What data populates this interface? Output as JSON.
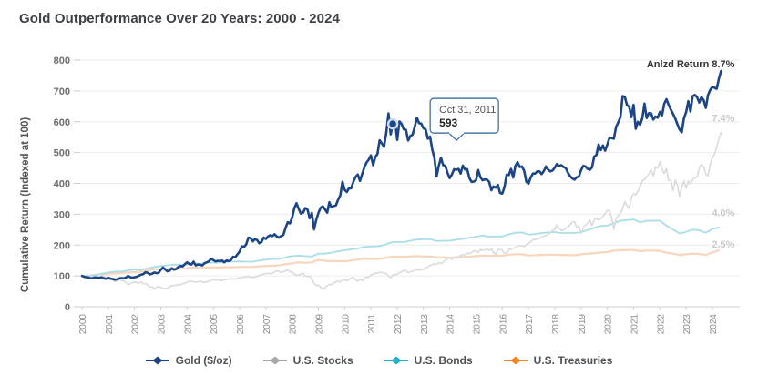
{
  "title": "Gold Outperformance Over 20 Years: 2000 - 2024",
  "chart_data": {
    "type": "line",
    "title": "Gold Outperformance Over 20 Years: 2000 - 2024",
    "xlabel": "",
    "ylabel": "Cumulative Return (Indexed at 100)",
    "ylim": [
      0,
      800
    ],
    "yticks": [
      0,
      100,
      200,
      300,
      400,
      500,
      600,
      700,
      800
    ],
    "xticks": [
      2000,
      2001,
      2002,
      2003,
      2004,
      2005,
      2006,
      2007,
      2008,
      2009,
      2010,
      2011,
      2012,
      2013,
      2014,
      2015,
      2016,
      2017,
      2018,
      2019,
      2020,
      2021,
      2022,
      2023,
      2024
    ],
    "grid": true,
    "legend_position": "bottom",
    "colors": {
      "grid": "#ececec",
      "axis": "#cfcfcf",
      "y_tick_label": "#6e6e6e",
      "x_tick_label": "#8d8d8d",
      "axis_title": "#555555",
      "annotation_main": "#333333",
      "annotation_light": "#c9cacc",
      "tooltip_border": "#4d7aab",
      "tooltip_text": "#555555",
      "tooltip_value": "#222222",
      "marker_ring": "#cdd9ea"
    },
    "annotations": [
      {
        "text": "Anlzd Return 8.7%",
        "x_year": 2024.85,
        "y_value": 788,
        "style": "main"
      },
      {
        "text": "7.4%",
        "x_year": 2024.85,
        "y_value": 612,
        "style": "light"
      },
      {
        "text": "4.0%",
        "x_year": 2024.85,
        "y_value": 306,
        "style": "light"
      },
      {
        "text": "2.5%",
        "x_year": 2024.85,
        "y_value": 203,
        "style": "light"
      }
    ],
    "tooltip": {
      "label": "Oct 31, 2011",
      "value": "593",
      "t": 2011.833,
      "v": 593
    },
    "series": [
      {
        "id": "gold",
        "name": "Gold ($/oz)",
        "color": "#1c4586",
        "legend_color": "#1c4586",
        "line_width": 2.6,
        "start_year": 2000,
        "points_per_year": 12,
        "values": [
          100,
          97,
          96,
          95,
          92,
          93,
          95,
          94,
          94,
          95,
          92,
          91,
          94,
          91,
          90,
          88,
          89,
          92,
          93,
          92,
          94,
          100,
          96,
          94,
          96,
          97,
          101,
          104,
          106,
          112,
          110,
          105,
          107,
          111,
          109,
          110,
          120,
          127,
          121,
          115,
          117,
          125,
          120,
          122,
          129,
          132,
          131,
          138,
          144,
          139,
          137,
          146,
          134,
          137,
          136,
          134,
          141,
          144,
          147,
          156,
          151,
          147,
          149,
          148,
          150,
          144,
          150,
          148,
          151,
          162,
          160,
          170,
          179,
          196,
          194,
          202,
          224,
          223,
          212,
          220,
          216,
          206,
          210,
          224,
          220,
          228,
          232,
          229,
          235,
          228,
          224,
          229,
          233,
          255,
          274,
          270,
          288,
          319,
          336,
          318,
          302,
          305,
          320,
          316,
          287,
          304,
          251,
          282,
          304,
          321,
          326,
          316,
          305,
          339,
          322,
          327,
          329,
          347,
          361,
          405,
          379,
          372,
          385,
          384,
          406,
          421,
          429,
          408,
          430,
          452,
          468,
          477,
          491,
          459,
          485,
          496,
          540,
          530,
          519,
          563,
          627,
          559,
          593,
          604,
          541,
          601,
          593,
          575,
          574,
          539,
          554,
          558,
          583,
          613,
          595,
          594,
          579,
          575,
          545,
          552,
          510,
          483,
          423,
          457,
          483,
          459,
          457,
          434,
          417,
          429,
          446,
          444,
          447,
          432,
          458,
          445,
          446,
          417,
          405,
          406,
          410,
          443,
          420,
          410,
          413,
          412,
          405,
          378,
          390,
          386,
          395,
          369,
          367,
          388,
          428,
          427,
          447,
          419,
          457,
          469,
          453,
          455,
          441,
          405,
          399,
          419,
          432,
          432,
          439,
          439,
          430,
          440,
          455,
          444,
          439,
          442,
          451,
          463,
          456,
          459,
          453,
          450,
          434,
          423,
          416,
          412,
          420,
          422,
          443,
          457,
          455,
          447,
          444,
          452,
          487,
          492,
          526,
          508,
          523,
          506,
          526,
          548,
          547,
          545,
          583,
          598,
          615,
          683,
          681,
          654,
          649,
          615,
          655,
          577,
          600,
          590,
          611,
          659,
          612,
          628,
          627,
          607,
          617,
          613,
          632,
          621,
          659,
          673,
          655,
          639,
          626,
          611,
          592,
          575,
          566,
          611,
          631,
          667,
          633,
          683,
          687,
          680,
          662,
          680,
          670,
          645,
          686,
          703,
          713,
          710,
          707,
          740,
          765
        ]
      },
      {
        "id": "us-stocks",
        "name": "U.S. Stocks",
        "color": "#d9dbdd",
        "legend_color": "#a5a8ab",
        "line_width": 1.6,
        "start_year": 2000,
        "points_per_year": 12,
        "values": [
          100,
          95,
          93,
          102,
          99,
          97,
          99,
          98,
          104,
          99,
          99,
          91,
          92,
          95,
          86,
          81,
          86,
          87,
          85,
          84,
          79,
          72,
          74,
          79,
          80,
          79,
          77,
          80,
          75,
          75,
          70,
          64,
          65,
          58,
          63,
          66,
          62,
          60,
          59,
          60,
          65,
          68,
          69,
          70,
          72,
          71,
          75,
          76,
          80,
          82,
          83,
          81,
          80,
          81,
          83,
          80,
          80,
          81,
          82,
          86,
          88,
          86,
          88,
          86,
          85,
          88,
          88,
          91,
          90,
          91,
          89,
          93,
          93,
          96,
          96,
          97,
          98,
          95,
          95,
          96,
          98,
          101,
          104,
          106,
          107,
          109,
          107,
          108,
          113,
          117,
          115,
          111,
          113,
          117,
          119,
          114,
          113,
          106,
          103,
          102,
          107,
          108,
          99,
          98,
          99,
          90,
          75,
          69,
          70,
          64,
          57,
          62,
          68,
          72,
          72,
          77,
          80,
          83,
          81,
          86,
          88,
          85,
          88,
          93,
          95,
          87,
          83,
          89,
          85,
          93,
          96,
          96,
          103,
          105,
          109,
          109,
          112,
          111,
          109,
          107,
          101,
          94,
          104,
          104,
          105,
          110,
          114,
          118,
          117,
          110,
          114,
          115,
          118,
          121,
          119,
          120,
          121,
          127,
          129,
          134,
          136,
          139,
          137,
          144,
          140,
          144,
          151,
          155,
          159,
          153,
          160,
          161,
          162,
          166,
          169,
          167,
          174,
          172,
          176,
          181,
          181,
          176,
          186,
          183,
          184,
          187,
          183,
          187,
          175,
          171,
          186,
          186,
          183,
          174,
          174,
          186,
          187,
          190,
          191,
          198,
          198,
          198,
          195,
          202,
          206,
          210,
          218,
          218,
          220,
          223,
          225,
          230,
          230,
          235,
          240,
          248,
          250,
          265,
          255,
          248,
          249,
          255,
          257,
          267,
          275,
          276,
          257,
          262,
          238,
          257,
          265,
          270,
          281,
          263,
          282,
          286,
          281,
          286,
          292,
          303,
          312,
          312,
          287,
          251,
          283,
          296,
          302,
          319,
          341,
          328,
          319,
          354,
          367,
          363,
          373,
          389,
          409,
          412,
          421,
          431,
          444,
          423,
          453,
          450,
          470,
          446,
          432,
          448,
          409,
          410,
          376,
          411,
          394,
          358,
          387,
          408,
          384,
          408,
          398,
          412,
          418,
          420,
          448,
          462,
          454,
          432,
          423,
          462,
          483,
          495,
          517,
          545,
          565
        ]
      },
      {
        "id": "us-bonds",
        "name": "U.S. Bonds",
        "color": "#a9dde8",
        "legend_color": "#21b2c7",
        "line_width": 1.8,
        "start_year": 2000,
        "points_per_year": 4,
        "values": [
          100,
          101,
          103,
          107,
          111,
          114,
          114,
          118,
          120,
          120,
          124,
          129,
          132,
          134,
          137,
          136,
          137,
          140,
          139,
          143,
          143,
          143,
          147,
          146,
          147,
          146,
          146,
          150,
          153,
          155,
          155,
          160,
          164,
          166,
          164,
          163,
          172,
          172,
          175,
          180,
          183,
          186,
          189,
          194,
          195,
          196,
          200,
          208,
          210,
          210,
          214,
          218,
          219,
          219,
          213,
          214,
          214,
          218,
          220,
          224,
          227,
          231,
          227,
          228,
          228,
          235,
          240,
          241,
          234,
          236,
          239,
          241,
          242,
          239,
          239,
          239,
          242,
          249,
          256,
          262,
          263,
          271,
          279,
          281,
          283,
          274,
          279,
          279,
          279,
          263,
          250,
          238,
          243,
          250,
          248,
          240,
          252,
          257
        ]
      },
      {
        "id": "us-treasuries",
        "name": "U.S. Treasuries",
        "color": "#f8d5bc",
        "legend_color": "#f58321",
        "line_width": 2.2,
        "start_year": 2000,
        "points_per_year": 4,
        "values": [
          100,
          101,
          103,
          105,
          106,
          108,
          109,
          112,
          112,
          114,
          118,
          122,
          122,
          123,
          125,
          124,
          125,
          127,
          126,
          127,
          128,
          127,
          129,
          128,
          129,
          129,
          129,
          131,
          132,
          133,
          134,
          138,
          141,
          144,
          142,
          144,
          152,
          149,
          148,
          148,
          147,
          150,
          153,
          156,
          155,
          155,
          157,
          162,
          163,
          162,
          163,
          164,
          163,
          163,
          161,
          160,
          159,
          160,
          161,
          162,
          164,
          166,
          165,
          166,
          165,
          169,
          170,
          170,
          166,
          167,
          168,
          169,
          169,
          168,
          167,
          167,
          170,
          172,
          174,
          176,
          177,
          182,
          183,
          184,
          184,
          180,
          182,
          182,
          181,
          175,
          172,
          168,
          170,
          172,
          171,
          168,
          176,
          183
        ]
      }
    ]
  }
}
